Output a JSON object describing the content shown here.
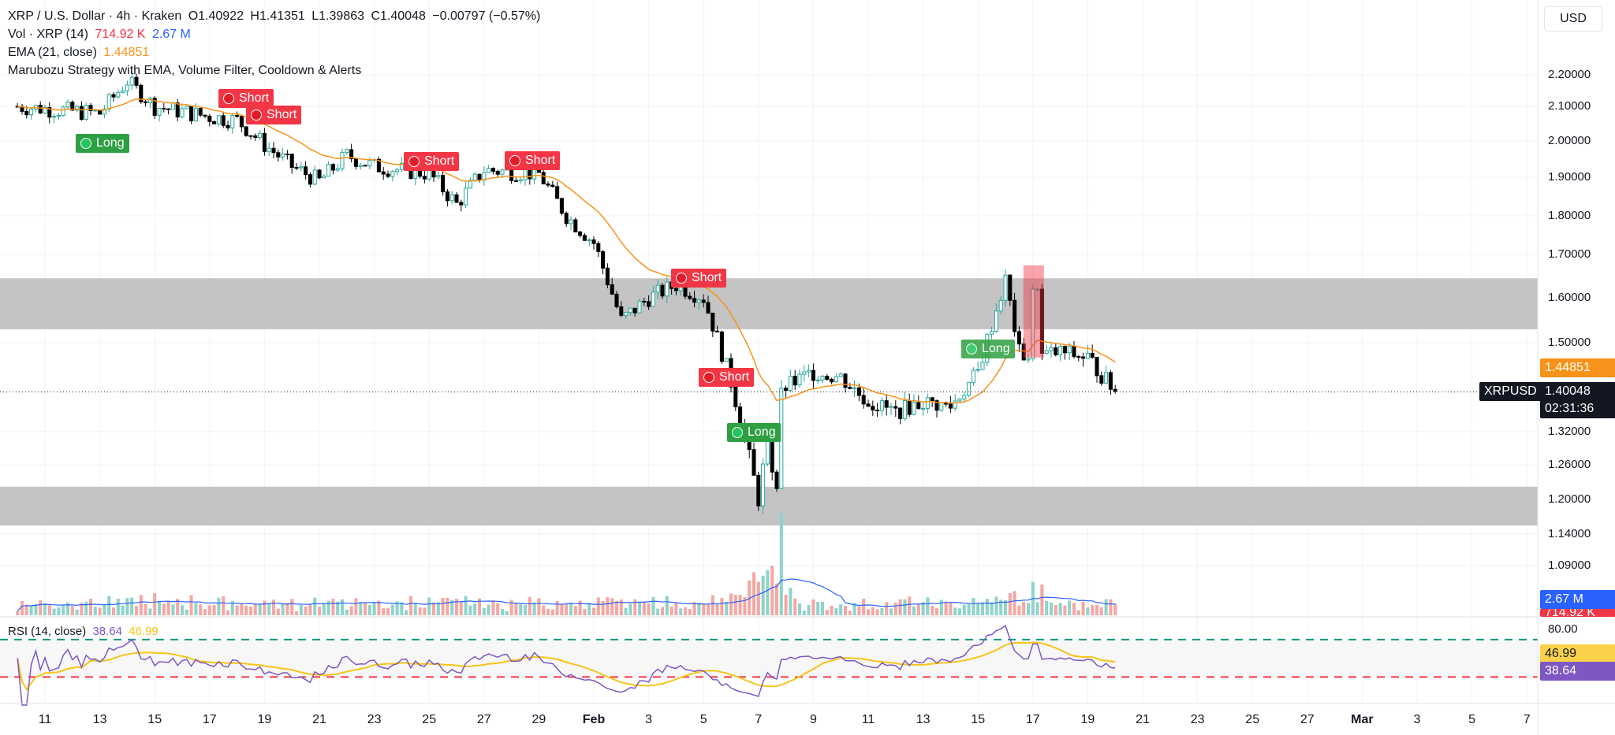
{
  "header": {
    "symbol_line": {
      "pair": "XRP / U.S. Dollar · 4h · Kraken",
      "open": "O1.40922",
      "high": "H1.41351",
      "low": "L1.39863",
      "close": "C1.40048",
      "change": "−0.00797 (−0.57%)"
    },
    "vol_line": {
      "label": "Vol · XRP (14)",
      "v1": "714.92 K",
      "v2": "2.67 M"
    },
    "ema_line": {
      "label": "EMA (21, close)",
      "value": "1.44851"
    },
    "strategy_line": {
      "label": "Marubozu Strategy with EMA, Volume Filter, Cooldown & Alerts"
    },
    "rsi_line": {
      "label": "RSI (14, close)",
      "v1": "38.64",
      "v2": "46.99"
    }
  },
  "currency_button": "USD",
  "price_axis": {
    "ticks": [
      "2.20000",
      "2.10000",
      "2.00000",
      "1.90000",
      "1.80000",
      "1.70000",
      "1.60000",
      "1.50000",
      "1.32000",
      "1.26000",
      "1.20000",
      "1.14000",
      "1.09000"
    ],
    "ema_tag": "1.44851",
    "symbol_tag": "XRPUSD",
    "last_price_tag": "1.40048",
    "countdown_tag": "02:31:36",
    "vol_tag_blue": "2.67 M",
    "vol_tag_red": "714.92 K"
  },
  "rsi_axis": {
    "top_tick": "80.00",
    "ma_tag": "46.99",
    "rsi_tag": "38.64"
  },
  "time_axis": [
    "11",
    "13",
    "15",
    "17",
    "19",
    "21",
    "23",
    "25",
    "27",
    "29",
    "Feb",
    "3",
    "5",
    "7",
    "9",
    "11",
    "13",
    "15",
    "17",
    "19",
    "21",
    "23",
    "25",
    "27",
    "Mar",
    "3",
    "5",
    "7"
  ],
  "signals": [
    {
      "text": "Long",
      "kind": "long"
    },
    {
      "text": "Short",
      "kind": "short"
    },
    {
      "text": "Short",
      "kind": "short"
    },
    {
      "text": "Short",
      "kind": "short"
    },
    {
      "text": "Short",
      "kind": "short"
    },
    {
      "text": "Short",
      "kind": "short"
    },
    {
      "text": "Short",
      "kind": "short"
    },
    {
      "text": "Long",
      "kind": "long"
    },
    {
      "text": "Long",
      "kind": "long"
    }
  ],
  "colors": {
    "up": "#26a69a",
    "down": "#000000",
    "ema": "#f7931a",
    "vol_up": "#8fd3cc",
    "vol_down": "#f4a7a3",
    "vol_ma": "#2962ff",
    "rsi": "#7e57c2",
    "rsi_ma": "#f5c518",
    "zone": "#c1c1c1",
    "short_tag": "#f23645",
    "long_tag": "#2ea043"
  },
  "chart_data": {
    "type": "candlestick",
    "timeframe": "4h",
    "x_range": [
      "Jan 10",
      "Mar 7"
    ],
    "y_range": [
      1.09,
      2.24
    ],
    "ema": {
      "name": "EMA (21, close)",
      "last": 1.44851
    },
    "zones": [
      {
        "from": 1.53,
        "to": 1.645
      },
      {
        "from": 1.155,
        "to": 1.222
      }
    ],
    "close_path": [
      {
        "x": "Jan 10",
        "y": 2.1
      },
      {
        "x": "Jan 13",
        "y": 2.08
      },
      {
        "x": "Jan 14",
        "y": 2.18
      },
      {
        "x": "Jan 15",
        "y": 2.1
      },
      {
        "x": "Jan 17",
        "y": 2.07
      },
      {
        "x": "Jan 18",
        "y": 2.06
      },
      {
        "x": "Jan 19",
        "y": 1.99
      },
      {
        "x": "Jan 20",
        "y": 1.93
      },
      {
        "x": "Jan 21",
        "y": 1.89
      },
      {
        "x": "Jan 22",
        "y": 1.96
      },
      {
        "x": "Jan 23",
        "y": 1.93
      },
      {
        "x": "Jan 25",
        "y": 1.91
      },
      {
        "x": "Jan 26",
        "y": 1.83
      },
      {
        "x": "Jan 27",
        "y": 1.92
      },
      {
        "x": "Jan 29",
        "y": 1.91
      },
      {
        "x": "Jan 30",
        "y": 1.8
      },
      {
        "x": "Jan 31",
        "y": 1.73
      },
      {
        "x": "Feb 1",
        "y": 1.55
      },
      {
        "x": "Feb 2",
        "y": 1.6
      },
      {
        "x": "Feb 3",
        "y": 1.63
      },
      {
        "x": "Feb 4",
        "y": 1.6
      },
      {
        "x": "Feb 5",
        "y": 1.42
      },
      {
        "x": "Feb 6",
        "y": 1.2
      },
      {
        "x": "Feb 6.5",
        "y": 1.36
      },
      {
        "x": "Feb 7",
        "y": 1.41
      },
      {
        "x": "Feb 8",
        "y": 1.44
      },
      {
        "x": "Feb 9",
        "y": 1.43
      },
      {
        "x": "Feb 10",
        "y": 1.38
      },
      {
        "x": "Feb 11",
        "y": 1.36
      },
      {
        "x": "Feb 12",
        "y": 1.38
      },
      {
        "x": "Feb 13",
        "y": 1.37
      },
      {
        "x": "Feb 14",
        "y": 1.44
      },
      {
        "x": "Feb 15",
        "y": 1.64
      },
      {
        "x": "Feb 15.5",
        "y": 1.48
      },
      {
        "x": "Feb 16",
        "y": 1.47
      },
      {
        "x": "Feb 17",
        "y": 1.48
      },
      {
        "x": "Feb 18",
        "y": 1.47
      },
      {
        "x": "Feb 19",
        "y": 1.40048
      }
    ],
    "last": {
      "open": 1.40922,
      "high": 1.41351,
      "low": 1.39863,
      "close": 1.40048,
      "change": -0.00797,
      "change_pct": -0.57
    },
    "volume": {
      "last": "714.92 K",
      "ma": "2.67 M"
    },
    "rsi": {
      "period": 14,
      "value": 38.64,
      "ma": 46.99,
      "levels": [
        70,
        30
      ],
      "top_tick": 80
    }
  }
}
